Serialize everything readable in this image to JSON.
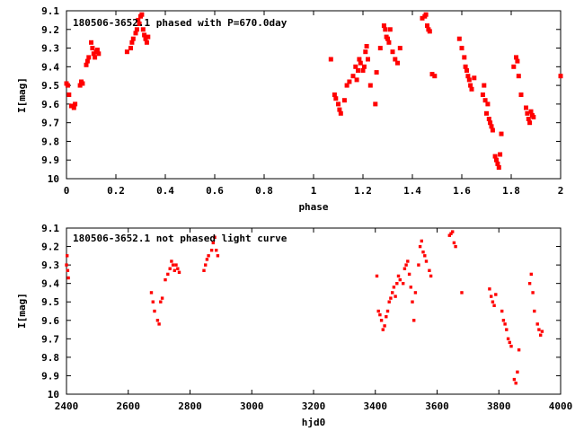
{
  "chart_data": [
    {
      "type": "scatter",
      "title": "180506-3652.1 phased with P=670.0day",
      "xlabel": "phase",
      "ylabel": "I[mag]",
      "xlim": [
        0,
        2
      ],
      "ylim": [
        10,
        9.1
      ],
      "y_inverted": true,
      "grid": false,
      "x_ticks": [
        "0",
        "0.2",
        "0.4",
        "0.6",
        "0.8",
        "1",
        "1.2",
        "1.4",
        "1.6",
        "1.8",
        "2"
      ],
      "y_ticks": [
        "9.1",
        "9.2",
        "9.3",
        "9.4",
        "9.5",
        "9.6",
        "9.7",
        "9.8",
        "9.9",
        "10"
      ],
      "marker_color": "#ff0000",
      "x": [
        0.0,
        0.005,
        0.01,
        0.02,
        0.03,
        0.035,
        0.055,
        0.06,
        0.065,
        0.08,
        0.085,
        0.09,
        0.1,
        0.105,
        0.11,
        0.115,
        0.12,
        0.125,
        0.13,
        0.245,
        0.26,
        0.265,
        0.27,
        0.28,
        0.285,
        0.29,
        0.295,
        0.3,
        0.305,
        0.31,
        0.315,
        0.32,
        0.325,
        0.33,
        1.07,
        1.085,
        1.09,
        1.1,
        1.105,
        1.11,
        1.125,
        1.135,
        1.145,
        1.16,
        1.17,
        1.175,
        1.18,
        1.185,
        1.19,
        1.2,
        1.205,
        1.21,
        1.215,
        1.22,
        1.23,
        1.25,
        1.255,
        1.27,
        1.285,
        1.29,
        1.295,
        1.3,
        1.305,
        1.31,
        1.32,
        1.33,
        1.34,
        1.35,
        1.44,
        1.45,
        1.455,
        1.46,
        1.465,
        1.47,
        1.48,
        1.49,
        1.59,
        1.6,
        1.61,
        1.615,
        1.62,
        1.625,
        1.63,
        1.635,
        1.64,
        1.65,
        1.685,
        1.69,
        1.695,
        1.7,
        1.705,
        1.71,
        1.715,
        1.72,
        1.725,
        1.735,
        1.74,
        1.745,
        1.75,
        1.755,
        1.76,
        1.81,
        1.82,
        1.825,
        1.83,
        1.84,
        1.86,
        1.865,
        1.87,
        1.875,
        1.88,
        1.885,
        1.89,
        2.0
      ],
      "y": [
        9.49,
        9.5,
        9.55,
        9.61,
        9.62,
        9.6,
        9.5,
        9.48,
        9.49,
        9.39,
        9.37,
        9.35,
        9.27,
        9.3,
        9.33,
        9.35,
        9.32,
        9.31,
        9.33,
        9.32,
        9.3,
        9.27,
        9.25,
        9.22,
        9.2,
        9.15,
        9.17,
        9.13,
        9.12,
        9.2,
        9.23,
        9.25,
        9.27,
        9.24,
        9.36,
        9.55,
        9.57,
        9.6,
        9.63,
        9.65,
        9.58,
        9.5,
        9.48,
        9.45,
        9.4,
        9.47,
        9.42,
        9.36,
        9.38,
        9.42,
        9.4,
        9.32,
        9.29,
        9.36,
        9.5,
        9.6,
        9.43,
        9.3,
        9.18,
        9.2,
        9.24,
        9.25,
        9.27,
        9.2,
        9.32,
        9.36,
        9.38,
        9.3,
        9.14,
        9.13,
        9.12,
        9.18,
        9.2,
        9.21,
        9.44,
        9.45,
        9.25,
        9.3,
        9.35,
        9.4,
        9.42,
        9.45,
        9.47,
        9.5,
        9.52,
        9.46,
        9.55,
        9.5,
        9.58,
        9.65,
        9.6,
        9.68,
        9.7,
        9.72,
        9.74,
        9.88,
        9.9,
        9.92,
        9.94,
        9.87,
        9.76,
        9.4,
        9.35,
        9.37,
        9.45,
        9.55,
        9.62,
        9.65,
        9.68,
        9.7,
        9.64,
        9.66,
        9.67,
        9.45
      ]
    },
    {
      "type": "scatter",
      "title": "180506-3652.1 not phased light curve",
      "xlabel": "hjd0",
      "ylabel": "I[mag]",
      "xlim": [
        2400,
        4000
      ],
      "ylim": [
        10,
        9.1
      ],
      "y_inverted": true,
      "grid": false,
      "x_ticks": [
        "2400",
        "2600",
        "2800",
        "3000",
        "3200",
        "3400",
        "3600",
        "3800",
        "4000"
      ],
      "y_ticks": [
        "9.1",
        "9.2",
        "9.3",
        "9.4",
        "9.5",
        "9.6",
        "9.7",
        "9.8",
        "9.9",
        "10"
      ],
      "marker_color": "#ff0000",
      "x": [
        2400,
        2402,
        2404,
        2406,
        2675,
        2680,
        2685,
        2695,
        2700,
        2705,
        2710,
        2720,
        2728,
        2735,
        2740,
        2745,
        2750,
        2755,
        2760,
        2765,
        2845,
        2850,
        2855,
        2860,
        2870,
        2875,
        2880,
        2885,
        2890,
        3405,
        3410,
        3415,
        3420,
        3425,
        3430,
        3435,
        3440,
        3445,
        3450,
        3455,
        3460,
        3465,
        3470,
        3475,
        3480,
        3490,
        3495,
        3500,
        3505,
        3510,
        3515,
        3520,
        3525,
        3530,
        3540,
        3545,
        3550,
        3555,
        3560,
        3565,
        3575,
        3580,
        3640,
        3645,
        3650,
        3655,
        3660,
        3680,
        3770,
        3775,
        3780,
        3785,
        3790,
        3810,
        3815,
        3820,
        3825,
        3830,
        3835,
        3840,
        3850,
        3855,
        3860,
        3865,
        3900,
        3905,
        3910,
        3915,
        3925,
        3930,
        3935,
        3940
      ],
      "y": [
        9.3,
        9.25,
        9.33,
        9.37,
        9.45,
        9.5,
        9.55,
        9.6,
        9.62,
        9.5,
        9.48,
        9.38,
        9.35,
        9.32,
        9.28,
        9.3,
        9.33,
        9.3,
        9.32,
        9.34,
        9.33,
        9.3,
        9.27,
        9.25,
        9.22,
        9.18,
        9.15,
        9.22,
        9.25,
        9.36,
        9.55,
        9.57,
        9.6,
        9.65,
        9.63,
        9.58,
        9.55,
        9.5,
        9.48,
        9.45,
        9.42,
        9.47,
        9.4,
        9.36,
        9.38,
        9.4,
        9.32,
        9.3,
        9.28,
        9.35,
        9.42,
        9.5,
        9.6,
        9.45,
        9.3,
        9.2,
        9.17,
        9.23,
        9.25,
        9.28,
        9.33,
        9.36,
        9.14,
        9.13,
        9.12,
        9.18,
        9.2,
        9.45,
        9.43,
        9.47,
        9.5,
        9.52,
        9.46,
        9.55,
        9.6,
        9.62,
        9.65,
        9.7,
        9.72,
        9.74,
        9.92,
        9.94,
        9.88,
        9.76,
        9.4,
        9.35,
        9.45,
        9.55,
        9.62,
        9.65,
        9.68,
        9.66
      ]
    }
  ]
}
